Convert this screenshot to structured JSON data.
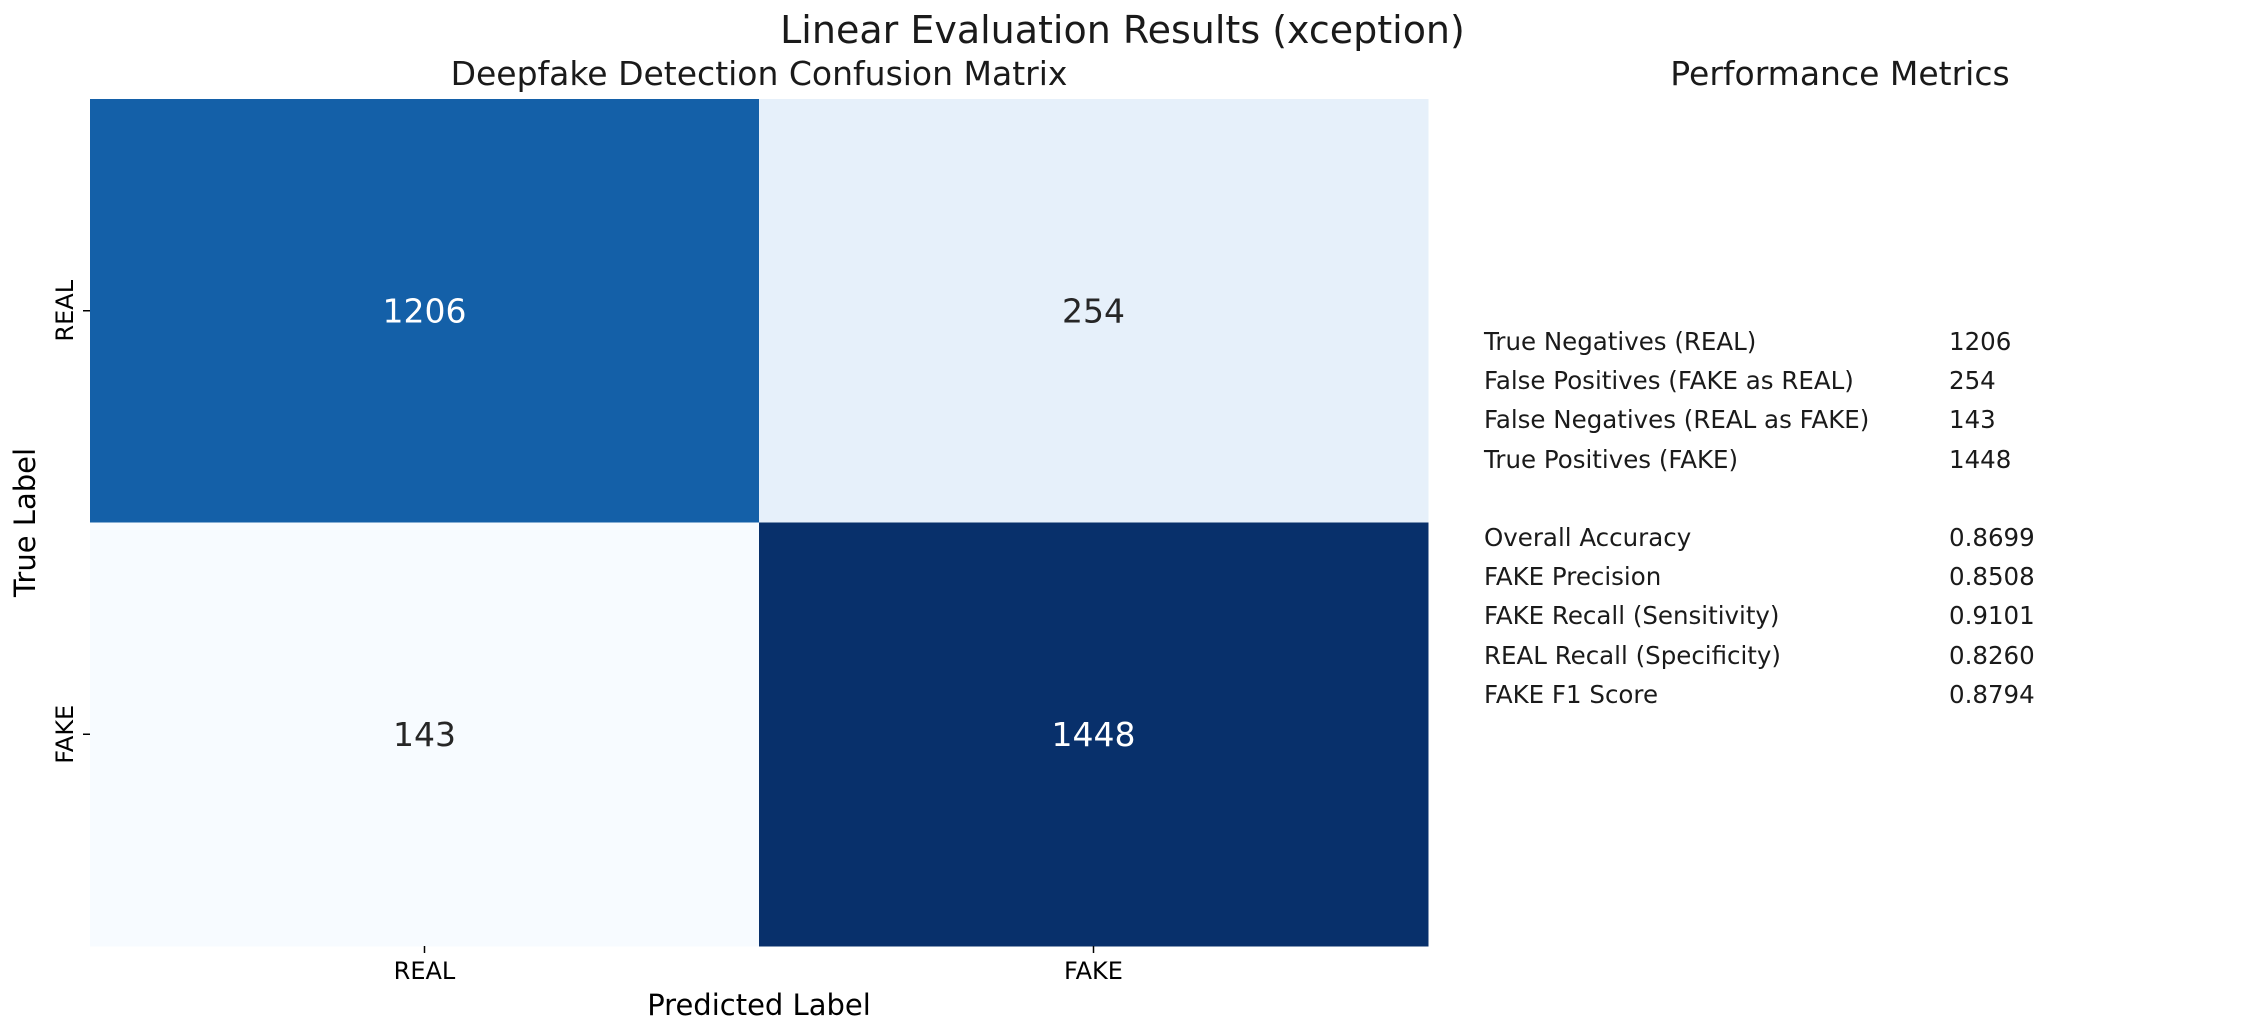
{
  "suptitle": "Linear Evaluation Results (xception)",
  "chart_data": [
    {
      "type": "heatmap",
      "title": "Deepfake Detection Confusion Matrix",
      "xlabel": "Predicted Label",
      "ylabel": "True Label",
      "x_categories": [
        "REAL",
        "FAKE"
      ],
      "y_categories": [
        "REAL",
        "FAKE"
      ],
      "values": [
        [
          1206,
          254
        ],
        [
          143,
          1448
        ]
      ],
      "colormap": "Blues",
      "colorbar": false,
      "annotations": true
    },
    {
      "type": "table",
      "title": "Performance Metrics",
      "rows": [
        {
          "label": "True Negatives (REAL)",
          "value": "1206"
        },
        {
          "label": "False Positives (FAKE as REAL)",
          "value": "254"
        },
        {
          "label": "False Negatives (REAL as FAKE)",
          "value": "143"
        },
        {
          "label": "True Positives (FAKE)",
          "value": "1448"
        },
        {
          "label": "",
          "value": ""
        },
        {
          "label": "Overall Accuracy",
          "value": "0.8699"
        },
        {
          "label": "FAKE Precision",
          "value": "0.8508"
        },
        {
          "label": "FAKE Recall (Sensitivity)",
          "value": "0.9101"
        },
        {
          "label": "REAL Recall (Specificity)",
          "value": "0.8260"
        },
        {
          "label": "FAKE F1 Score",
          "value": "0.8794"
        }
      ]
    }
  ]
}
